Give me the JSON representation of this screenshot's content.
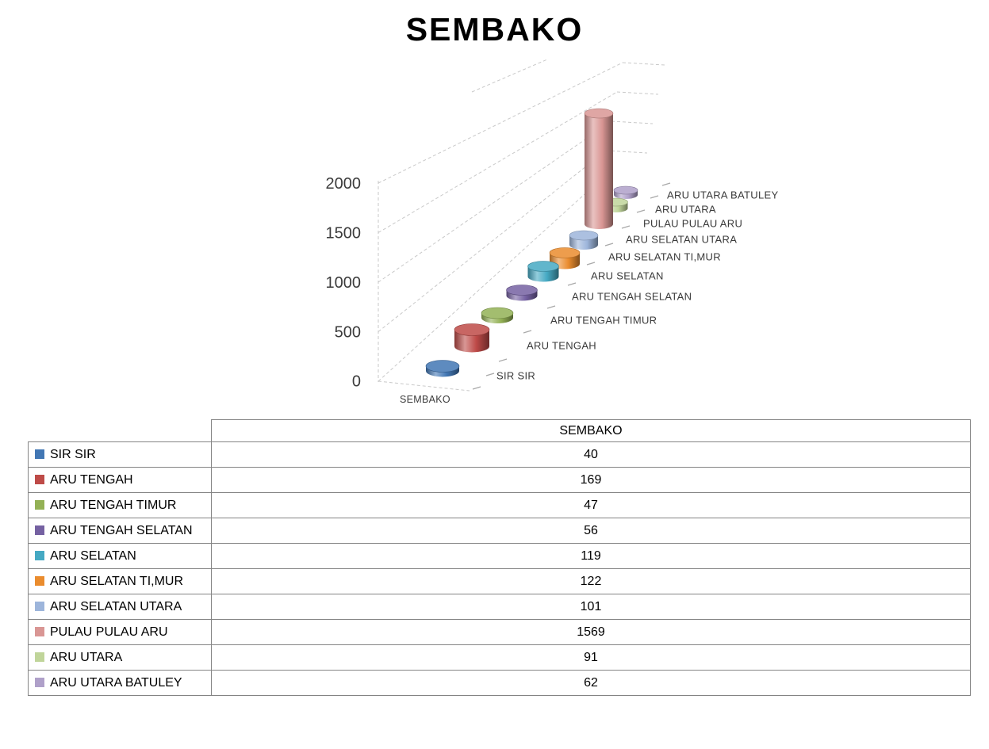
{
  "title": "SEMBAKO",
  "chart_data": {
    "type": "bar",
    "subtype": "3d-cylinder",
    "title": "SEMBAKO",
    "categories": [
      "SIR SIR",
      "ARU TENGAH",
      "ARU TENGAH TIMUR",
      "ARU TENGAH SELATAN",
      "ARU SELATAN",
      "ARU SELATAN TI,MUR",
      "ARU SELATAN UTARA",
      "PULAU PULAU ARU",
      "ARU UTARA",
      "ARU UTARA BATULEY"
    ],
    "values": [
      40,
      169,
      47,
      56,
      119,
      122,
      101,
      1569,
      91,
      62
    ],
    "colors": [
      "#4277B4",
      "#BE4B48",
      "#93B155",
      "#7561A2",
      "#45A9C3",
      "#EA8C2E",
      "#9DB5DB",
      "#D99694",
      "#C0D59A",
      "#AFA0C9"
    ],
    "category_axis_label": "SEMBAKO",
    "yticks": [
      "0",
      "500",
      "1000",
      "1500",
      "2000"
    ],
    "ylim": [
      0,
      2000
    ],
    "grid": true,
    "gridline_style": "dashed",
    "legend_position": "table-left-column"
  },
  "table": {
    "header": "SEMBAKO"
  }
}
